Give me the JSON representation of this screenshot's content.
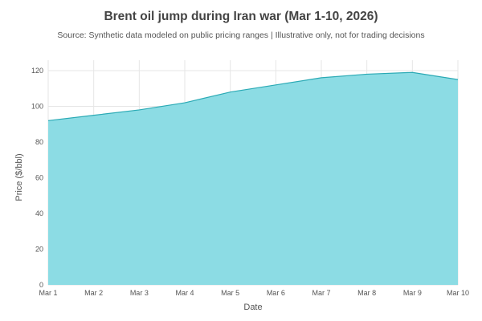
{
  "chart_data": {
    "type": "area",
    "title": "Brent oil jump during Iran war (Mar 1-10, 2026)",
    "subtitle": "Source: Synthetic data modeled on public pricing ranges | Illustrative only, not for trading decisions",
    "xlabel": "Date",
    "ylabel": "Price ($/bbl)",
    "categories": [
      "Mar 1",
      "Mar 2",
      "Mar 3",
      "Mar 4",
      "Mar 5",
      "Mar 6",
      "Mar 7",
      "Mar 8",
      "Mar 9",
      "Mar 10"
    ],
    "values": [
      92,
      95,
      98,
      102,
      108,
      112,
      116,
      118,
      119,
      115
    ],
    "ylim": [
      0,
      120
    ],
    "yticks": [
      0,
      20,
      40,
      60,
      80,
      100,
      120
    ],
    "grid": true,
    "legend": "none",
    "colors": {
      "fill": "#8CDCE4",
      "line": "#2BAAB5",
      "grid": "#E6E6E6"
    }
  }
}
